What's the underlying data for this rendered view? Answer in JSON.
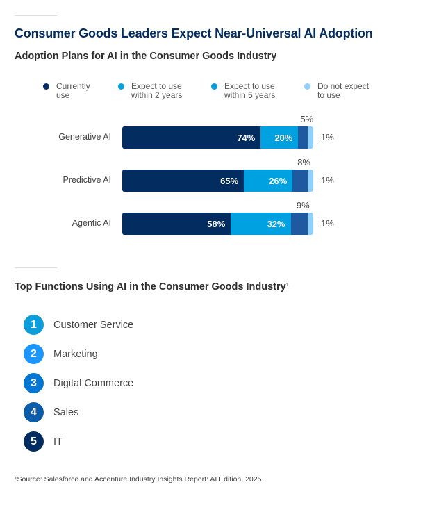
{
  "title": "Consumer Goods Leaders Expect Near-Universal AI Adoption",
  "chart_data": {
    "type": "bar",
    "orientation": "horizontal",
    "stacked": true,
    "title": "Adoption Plans for AI in the Consumer Goods Industry",
    "categories": [
      "Generative AI",
      "Predictive AI",
      "Agentic AI"
    ],
    "legend_position": "top",
    "series": [
      {
        "name": "Currently use",
        "values": [
          74,
          65,
          58
        ],
        "color": "#032d60",
        "legend_color": "#032d60"
      },
      {
        "name": "Expect to use within 2 years",
        "values": [
          20,
          26,
          32
        ],
        "color": "#00a1e0",
        "legend_color": "#00a1e0"
      },
      {
        "name": "Expect to use within 5 years",
        "values": [
          5,
          8,
          9
        ],
        "color": "#1f5aa0",
        "legend_color": "#0b9ddb"
      },
      {
        "name": "Do not expect to use",
        "values": [
          1,
          1,
          1
        ],
        "color": "#90d0fe",
        "legend_color": "#90d0fe"
      }
    ],
    "legend_lines": [
      [
        "Currently",
        "use"
      ],
      [
        "Expect to use",
        "within 2 years"
      ],
      [
        "Expect to use",
        "within 5 years"
      ],
      [
        "Do not expect",
        "to use"
      ]
    ],
    "data_labels": [
      [
        "74%",
        "20%",
        "5%",
        "1%"
      ],
      [
        "65%",
        "26%",
        "8%",
        "1%"
      ],
      [
        "58%",
        "32%",
        "9%",
        "1%"
      ]
    ],
    "unit": "%"
  },
  "functions": {
    "title": "Top Functions Using AI in the Consumer Goods Industry¹",
    "items": [
      {
        "rank": "1",
        "label": "Customer Service",
        "color": "#0d9dda"
      },
      {
        "rank": "2",
        "label": "Marketing",
        "color": "#1b96ff"
      },
      {
        "rank": "3",
        "label": "Digital Commerce",
        "color": "#0176d3"
      },
      {
        "rank": "4",
        "label": "Sales",
        "color": "#0b5cab"
      },
      {
        "rank": "5",
        "label": "IT",
        "color": "#032d60"
      }
    ]
  },
  "footnote": "¹Source: Salesforce and Accenture Industry Insights Report: AI Edition, 2025."
}
